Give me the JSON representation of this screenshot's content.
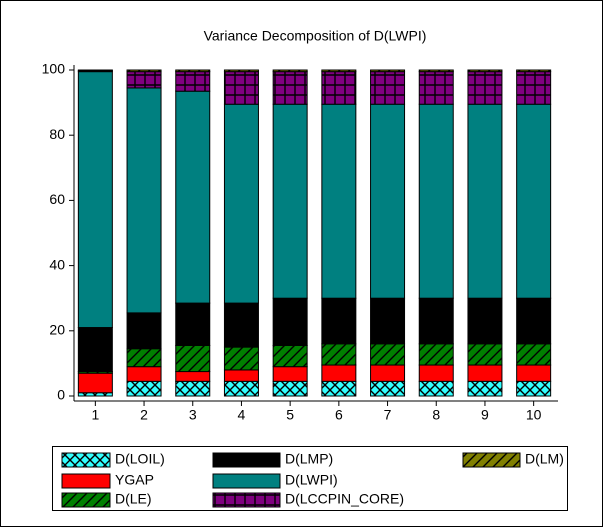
{
  "chart_data": {
    "type": "stacked_bar",
    "title": "Variance Decomposition of D(LWPI)",
    "categories": [
      "1",
      "2",
      "3",
      "4",
      "5",
      "6",
      "7",
      "8",
      "9",
      "10"
    ],
    "ylim": [
      0,
      100
    ],
    "yticks": [
      0,
      20,
      40,
      60,
      80,
      100
    ],
    "series": [
      {
        "name": "D(LOIL)",
        "color": "#33ffff",
        "pattern": "cross",
        "values": [
          1,
          4.5,
          4.5,
          4.5,
          4.5,
          4.5,
          4.5,
          4.5,
          4.5,
          4.5
        ]
      },
      {
        "name": "YGAP",
        "color": "#ff0000",
        "pattern": "none",
        "values": [
          6,
          4.5,
          3,
          3.5,
          4.5,
          5,
          5,
          5,
          5,
          5
        ]
      },
      {
        "name": "D(LE)",
        "color": "#008000",
        "pattern": "diagonal",
        "values": [
          0.5,
          5.5,
          8,
          7,
          6.5,
          6.5,
          6.5,
          6.5,
          6.5,
          6.5
        ]
      },
      {
        "name": "D(LMP)",
        "color": "#000000",
        "pattern": "none",
        "values": [
          13.5,
          11,
          13,
          13.5,
          14.5,
          14,
          14,
          14,
          14,
          14
        ]
      },
      {
        "name": "D(LWPI)",
        "color": "#008080",
        "pattern": "none",
        "values": [
          78.5,
          69,
          65,
          61,
          59.5,
          59.5,
          59.5,
          59.5,
          59.5,
          59.5
        ]
      },
      {
        "name": "D(LCCPIN_CORE)",
        "color": "#800080",
        "pattern": "grid",
        "values": [
          0.3,
          5,
          6,
          10,
          10,
          10,
          10,
          10,
          10,
          10
        ]
      },
      {
        "name": "D(LM)",
        "color": "#808000",
        "pattern": "diagonal",
        "values": [
          0.2,
          0.5,
          0.5,
          0.5,
          0.5,
          0.5,
          0.5,
          0.5,
          0.5,
          0.5
        ]
      }
    ]
  }
}
